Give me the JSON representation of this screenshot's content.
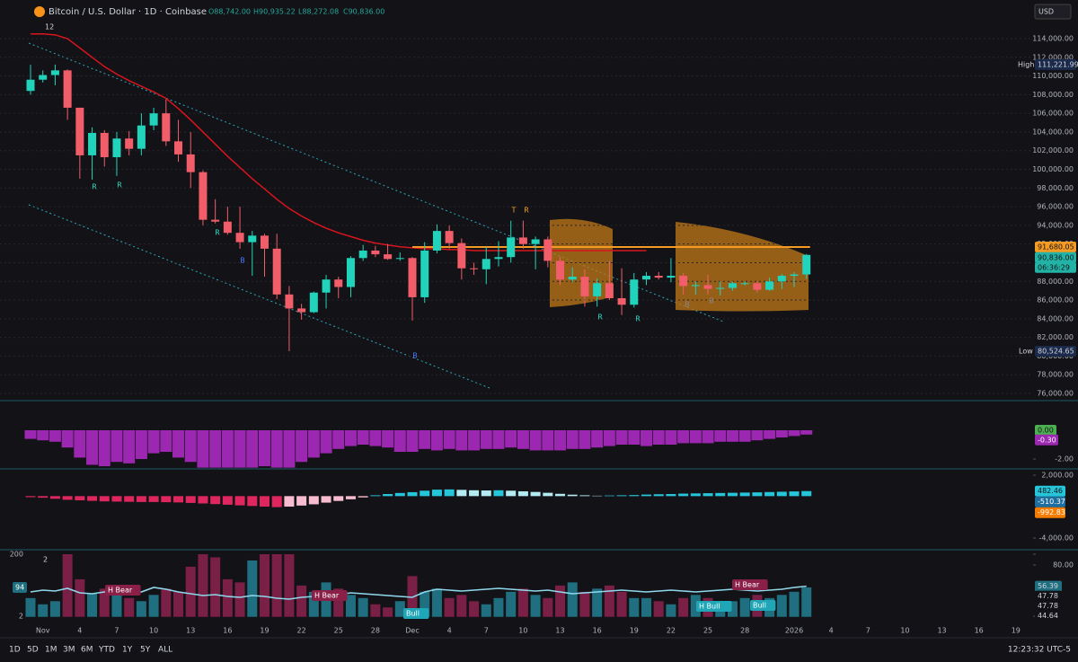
{
  "ui": {
    "title": "Bitcoin / U.S. Dollar · 1D · Coinbase",
    "ohlc": [
      "O88,742.00",
      "H90,935.22",
      "L88,272.08",
      "C90,836.00"
    ],
    "currency": "USD",
    "ma_length": "12",
    "high_label": "High",
    "high_value": "111,221.99",
    "low_label": "Low",
    "low_value": "80,524.65",
    "price_badges": [
      "91,680.05",
      "90,836.00",
      "06:36:29"
    ],
    "signals": [
      "R",
      "R",
      "R",
      "B",
      "B",
      "T",
      "R",
      "R",
      "R",
      "B",
      "B"
    ],
    "osc_badges": [
      "0.00",
      "-0.30"
    ],
    "macd_badges": [
      "482.46",
      "-510.37",
      "-992.83"
    ],
    "vol_left_badge": "94",
    "vol_right_badges": [
      "56.39",
      "47.78",
      "47.78",
      "44.64"
    ],
    "annotations": [
      "H Bear",
      "H Bear",
      "Bull",
      "H Bull",
      "H Bear",
      "Bull"
    ],
    "toolbar": [
      "1D",
      "5D",
      "1M",
      "3M",
      "6M",
      "YTD",
      "1Y",
      "5Y",
      "ALL"
    ],
    "clock": "12:23:32 UTC-5",
    "pane_index": "2"
  },
  "chart_data": [
    {
      "type": "candlestick",
      "colors": {
        "up": "#22d3bb",
        "down": "#f25d6a"
      },
      "categories": [
        null,
        "Nov",
        null,
        null,
        "4",
        null,
        null,
        "7",
        null,
        null,
        "10",
        null,
        null,
        "13",
        null,
        null,
        "16",
        null,
        null,
        "19",
        null,
        null,
        "22",
        null,
        null,
        "25",
        null,
        null,
        "28",
        null,
        null,
        "Dec",
        null,
        null,
        "4",
        null,
        null,
        "7",
        null,
        null,
        "10",
        null,
        null,
        "13",
        null,
        null,
        "16",
        null,
        null,
        "19",
        null,
        null,
        "22",
        null,
        null,
        "25",
        null,
        null,
        "28",
        null,
        null,
        null,
        "2026",
        null,
        null,
        "4",
        null,
        null,
        "7",
        null,
        null,
        "10",
        null,
        null,
        "13",
        null,
        null,
        "16",
        null,
        null,
        "19"
      ],
      "open": [
        108400,
        109600,
        110100,
        110600,
        106600,
        101500,
        103900,
        101300,
        103300,
        102200,
        104700,
        106000,
        103000,
        101600,
        99700,
        94600,
        94400,
        93200,
        92200,
        92900,
        91500,
        86600,
        85100,
        84700,
        86800,
        88200,
        87400,
        90500,
        91300,
        90900,
        90400,
        90500,
        86300,
        91300,
        93400,
        92100,
        89400,
        89300,
        90400,
        90600,
        92700,
        92000,
        92500,
        90200,
        88200,
        88500,
        86400,
        87800,
        86200,
        85500,
        88200,
        88600,
        88400,
        88600,
        87500,
        87600,
        87200,
        87300,
        87800,
        87800,
        87100,
        88000,
        88600,
        88742,
        null,
        null,
        null,
        null,
        null,
        null,
        null,
        null,
        null,
        null,
        null,
        null,
        null,
        null,
        null,
        null,
        null
      ],
      "high": [
        111200,
        110600,
        111221.99,
        110700,
        106600,
        104500,
        104200,
        104000,
        104100,
        106000,
        106600,
        107500,
        105300,
        104000,
        99900,
        96800,
        96000,
        96000,
        93400,
        93100,
        93100,
        87500,
        85600,
        86900,
        88700,
        88500,
        90700,
        91900,
        91800,
        92000,
        91100,
        90600,
        92200,
        94100,
        94000,
        92600,
        90000,
        91700,
        92300,
        94500,
        94500,
        92800,
        92800,
        90600,
        89500,
        89300,
        88300,
        90200,
        89400,
        88900,
        89000,
        89000,
        90500,
        88900,
        88000,
        88700,
        88000,
        88000,
        88000,
        88000,
        88400,
        88800,
        89000,
        90935.22,
        null,
        null,
        null,
        null,
        null,
        null,
        null,
        null,
        null,
        null,
        null,
        null,
        null,
        null,
        null,
        null,
        null
      ],
      "low": [
        108000,
        109300,
        109000,
        105300,
        99000,
        98900,
        100300,
        99300,
        101500,
        101500,
        104200,
        102500,
        100800,
        98000,
        94000,
        94200,
        93000,
        91500,
        88600,
        88500,
        86100,
        80524.65,
        83900,
        84600,
        85100,
        86200,
        86300,
        90200,
        90600,
        90300,
        90200,
        83800,
        85700,
        91000,
        91500,
        88200,
        88700,
        87700,
        89600,
        90000,
        91500,
        89300,
        89500,
        87600,
        87900,
        85300,
        85300,
        86000,
        84400,
        85200,
        87600,
        88200,
        87900,
        86600,
        86600,
        86600,
        86500,
        87000,
        87600,
        86800,
        87000,
        87200,
        87400,
        88272.08,
        null,
        null,
        null,
        null,
        null,
        null,
        null,
        null,
        null,
        null,
        null,
        null,
        null,
        null,
        null,
        null,
        null
      ],
      "close": [
        109600,
        110100,
        110600,
        106600,
        101500,
        103900,
        101300,
        103300,
        102200,
        104700,
        106000,
        103000,
        101600,
        99700,
        94600,
        94400,
        93200,
        92200,
        92900,
        91500,
        86600,
        85100,
        84700,
        86800,
        88200,
        87400,
        90500,
        91300,
        90900,
        90400,
        90500,
        86300,
        91300,
        93400,
        92100,
        89400,
        89300,
        90400,
        90600,
        92700,
        92000,
        92500,
        90200,
        88200,
        88500,
        86400,
        87800,
        86200,
        85500,
        88200,
        88600,
        88400,
        88600,
        87500,
        87600,
        87200,
        87300,
        87800,
        87800,
        87100,
        88000,
        88600,
        88742,
        90836,
        null,
        null,
        null,
        null,
        null,
        null,
        null,
        null,
        null,
        null,
        null,
        null,
        null,
        null,
        null,
        null,
        null
      ],
      "ma": {
        "color": "#d8141e",
        "values": [
          114500,
          114500,
          114400,
          114000,
          113000,
          112000,
          111000,
          110200,
          109500,
          108900,
          108300,
          107600,
          106500,
          105300,
          104000,
          102700,
          101400,
          100200,
          99000,
          97900,
          96800,
          95800,
          95000,
          94300,
          93700,
          93200,
          92800,
          92400,
          92100,
          91900,
          91700,
          91600,
          91500,
          91500,
          91400,
          91400,
          91300,
          91300,
          91300,
          91300,
          91300,
          91300,
          91300,
          91300,
          91300,
          91300,
          91300,
          91300,
          91300,
          91300,
          91300,
          null,
          null,
          null,
          null,
          null,
          null,
          null,
          null,
          null,
          null,
          null,
          null,
          null
        ]
      },
      "level": {
        "value": 91680.05,
        "color": "#f59a23"
      },
      "ylim": [
        75230,
        116020
      ],
      "yticks": [
        {
          "value": 76000,
          "label": "76,000.00"
        },
        {
          "value": 78000,
          "label": "78,000.00"
        },
        {
          "value": 80000,
          "label": "80,000.00"
        },
        {
          "value": 82000,
          "label": "82,000.00"
        },
        {
          "value": 84000,
          "label": "84,000.00"
        },
        {
          "value": 86000,
          "label": "86,000.00"
        },
        {
          "value": 88000,
          "label": "88,000.00"
        },
        {
          "value": 90000,
          "label": "90,000.00"
        },
        {
          "value": 92000,
          "label": "92,000.00"
        },
        {
          "value": 94000,
          "label": "94,000.00"
        },
        {
          "value": 96000,
          "label": "96,000.00"
        },
        {
          "value": 98000,
          "label": "98,000.00"
        },
        {
          "value": 100000,
          "label": "100,000.00"
        },
        {
          "value": 102000,
          "label": "102,000.00"
        },
        {
          "value": 104000,
          "label": "104,000.00"
        },
        {
          "value": 106000,
          "label": "106,000.00"
        },
        {
          "value": 108000,
          "label": "108,000.00"
        },
        {
          "value": 110000,
          "label": "110,000.00"
        },
        {
          "value": 112000,
          "label": "112,000.00"
        },
        {
          "value": 114000,
          "label": "114,000.00"
        }
      ],
      "grid": true
    },
    {
      "type": "bar",
      "color": "#9c27b0",
      "values": [
        -0.6,
        -0.7,
        -0.8,
        -1.2,
        -1.9,
        -2.4,
        -2.5,
        -2.2,
        -2.3,
        -2.0,
        -1.6,
        -1.5,
        -1.9,
        -2.2,
        -2.6,
        -2.6,
        -2.6,
        -2.6,
        -2.6,
        -2.5,
        -2.6,
        -2.6,
        -2.2,
        -1.9,
        -1.6,
        -1.3,
        -1.1,
        -1.0,
        -1.1,
        -1.2,
        -1.5,
        -1.5,
        -1.3,
        -1.4,
        -1.3,
        -1.4,
        -1.4,
        -1.3,
        -1.3,
        -1.2,
        -1.3,
        -1.4,
        -1.4,
        -1.4,
        -1.3,
        -1.3,
        -1.2,
        -1.1,
        -1.0,
        -1.0,
        -1.1,
        -1.0,
        -1.0,
        -0.9,
        -0.9,
        -0.9,
        -0.8,
        -0.8,
        -0.8,
        -0.7,
        -0.6,
        -0.5,
        -0.4,
        -0.3
      ],
      "ylim": [
        -2.56,
        1.81
      ],
      "yticks": [
        {
          "value": -2,
          "label": "-2.00"
        }
      ]
    },
    {
      "type": "bar",
      "colors": [
        "#26c6da",
        "#b2ebf2",
        "#e0265f",
        "#f8bbd0"
      ],
      "values": [
        -100,
        -150,
        -250,
        -350,
        -400,
        -450,
        -500,
        -520,
        -540,
        -560,
        -560,
        -580,
        -600,
        -650,
        -700,
        -760,
        -820,
        -880,
        -940,
        -1000,
        -1050,
        -1000,
        -900,
        -780,
        -620,
        -460,
        -300,
        -120,
        80,
        200,
        300,
        380,
        520,
        620,
        640,
        600,
        560,
        540,
        560,
        520,
        460,
        400,
        320,
        220,
        140,
        80,
        40,
        60,
        80,
        100,
        150,
        180,
        200,
        240,
        260,
        280,
        300,
        320,
        340,
        360,
        390,
        420,
        450,
        482.46
      ],
      "ylim": [
        -4943,
        2430
      ],
      "yticks": [
        {
          "value": 2000,
          "label": "2,000.00"
        },
        {
          "value": -4000,
          "label": "-4,000.00"
        }
      ]
    },
    {
      "type": "bar",
      "colors": {
        "up": "#1f6f80",
        "down": "#7a1f45"
      },
      "values": [
        60,
        40,
        50,
        200,
        120,
        75,
        90,
        80,
        60,
        50,
        70,
        90,
        80,
        160,
        200,
        190,
        120,
        110,
        180,
        200,
        200,
        200,
        100,
        80,
        110,
        90,
        70,
        60,
        40,
        30,
        50,
        130,
        80,
        90,
        60,
        70,
        50,
        40,
        60,
        80,
        90,
        70,
        60,
        100,
        110,
        80,
        90,
        100,
        80,
        60,
        60,
        50,
        40,
        60,
        70,
        60,
        30,
        50,
        60,
        70,
        60,
        70,
        80,
        94
      ],
      "ylim": [
        -9.4,
        208.6
      ],
      "yticks": [
        200,
        2
      ],
      "line": {
        "color": "#8fd8ec",
        "values": [
          50,
          52,
          51,
          54,
          49,
          48,
          50,
          51,
          52,
          50,
          55,
          53,
          50,
          48,
          46,
          47,
          45,
          44,
          46,
          45,
          43,
          42,
          44,
          45,
          46,
          47,
          49,
          48,
          47,
          46,
          45,
          44,
          50,
          53,
          52,
          51,
          52,
          53,
          54,
          53,
          52,
          51,
          52,
          50,
          48,
          49,
          50,
          51,
          52,
          51,
          50,
          51,
          52,
          51,
          50,
          51,
          52,
          53,
          52,
          51,
          52,
          53,
          55,
          56.39
        ]
      },
      "y2lim": [
        19,
        95
      ],
      "y2ticks": [
        {
          "value": 80,
          "label": "80.00"
        }
      ]
    }
  ]
}
